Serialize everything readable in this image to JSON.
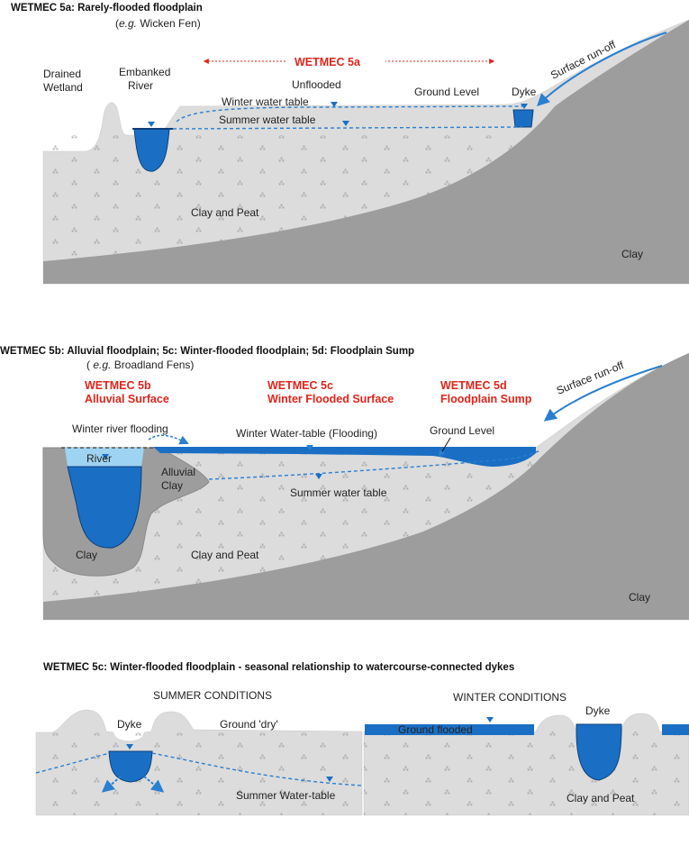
{
  "panel_a": {
    "title": "WETMEC 5a: Rarely-flooded floodplain",
    "example_prefix": "(",
    "example_em": "e.g.",
    "example_rest": " Wicken Fen)",
    "wetmec_label": "WETMEC 5a",
    "drained_wetland_1": "Drained",
    "drained_wetland_2": "Wetland",
    "embanked_river_1": "Embanked",
    "embanked_river_2": "River",
    "unflooded": "Unflooded",
    "ground_level": "Ground Level",
    "dyke": "Dyke",
    "winter_water_table": "Winter water table",
    "summer_water_table": "Summer water table",
    "surface_runoff": "Surface run-off",
    "clay_and_peat": "Clay and Peat",
    "clay": "Clay"
  },
  "panel_b": {
    "title": "WETMEC 5b: Alluvial floodplain; 5c: Winter-flooded floodplain; 5d: Floodplain Sump",
    "example_prefix": "( ",
    "example_em": "e.g.",
    "example_rest": " Broadland Fens)",
    "wetmec_5b_1": "WETMEC 5b",
    "wetmec_5b_2": "Alluvial Surface",
    "wetmec_5c_1": "WETMEC 5c",
    "wetmec_5c_2": "Winter Flooded Surface",
    "wetmec_5d_1": "WETMEC 5d",
    "wetmec_5d_2": "Floodplain Sump",
    "surface_runoff": "Surface run-off",
    "winter_river_flooding": "Winter river flooding",
    "winter_water_table": "Winter Water-table (Flooding)",
    "ground_level": "Ground Level",
    "river": "River",
    "alluvial_clay_1": "Alluvial",
    "alluvial_clay_2": "Clay",
    "summer_water_table": "Summer water table",
    "clay_left": "Clay",
    "clay_and_peat": "Clay and Peat",
    "clay": "Clay"
  },
  "panel_c": {
    "title": "WETMEC 5c: Winter-flooded floodplain - seasonal relationship to watercourse-connected dykes",
    "summer_conditions": "SUMMER CONDITIONS",
    "dyke_summer": "Dyke",
    "ground_dry": "Ground 'dry'",
    "summer_water_table": "Summer Water-table",
    "winter_conditions": "WINTER CONDITIONS",
    "dyke_winter": "Dyke",
    "ground_flooded": "Ground flooded",
    "clay_and_peat": "Clay and Peat"
  },
  "colors": {
    "soil_light": "#dcdcdc",
    "soil_dark": "#9d9d9d",
    "water": "#1a6fc4",
    "water_light": "#9fd3f2",
    "label_red": "#e0241b",
    "arrow_blue": "#2a7fd0"
  }
}
